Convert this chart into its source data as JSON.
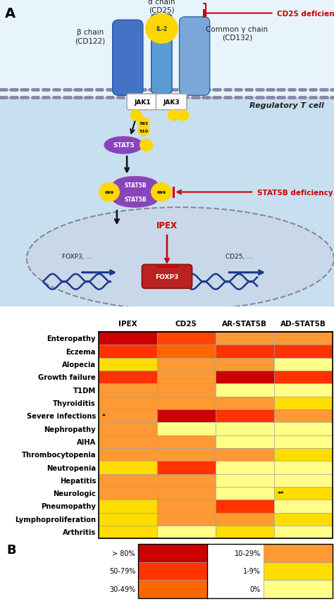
{
  "rows": [
    "Enteropathy",
    "Eczema",
    "Alopecia",
    "Growth failure",
    "T1DM",
    "Thyroiditis",
    "Severe infections",
    "Nephropathy",
    "AIHA",
    "Thrombocytopenia",
    "Neutropenia",
    "Hepatitis",
    "Neurologic",
    "Pneumopathy",
    "Lymphoproliferation",
    "Arthritis"
  ],
  "cols": [
    "IPEX",
    "CD25",
    "AR-STAT5B",
    "AD-STAT5B"
  ],
  "heatmap_colors": [
    [
      "#CC0000",
      "#FF4400",
      "#FF9933",
      "#FF9933"
    ],
    [
      "#FF3300",
      "#FF6600",
      "#FF3300",
      "#FF3300"
    ],
    [
      "#FFDD00",
      "#FF9933",
      "#FF9933",
      "#FFFF88"
    ],
    [
      "#FF3300",
      "#FF9933",
      "#CC0000",
      "#FF3300"
    ],
    [
      "#FF9933",
      "#FF9933",
      "#FFFF88",
      "#FFFF88"
    ],
    [
      "#FF9933",
      "#FF9933",
      "#FF9933",
      "#FFDD00"
    ],
    [
      "#FF9933",
      "#CC0000",
      "#FF3300",
      "#FF9933"
    ],
    [
      "#FF9933",
      "#FFFF88",
      "#FFFF88",
      "#FFFF88"
    ],
    [
      "#FF9933",
      "#FF9933",
      "#FFFF88",
      "#FFFF88"
    ],
    [
      "#FF9933",
      "#FF9933",
      "#FF9933",
      "#FFDD00"
    ],
    [
      "#FFDD00",
      "#FF3300",
      "#FFFF88",
      "#FFFF88"
    ],
    [
      "#FF9933",
      "#FF9933",
      "#FFFF88",
      "#FFFF88"
    ],
    [
      "#FF9933",
      "#FF9933",
      "#FFFF88",
      "#FFDD00"
    ],
    [
      "#FFDD00",
      "#FF9933",
      "#FF3300",
      "#FFFF88"
    ],
    [
      "#FFDD00",
      "#FF9933",
      "#FF9933",
      "#FFDD00"
    ],
    [
      "#FFDD00",
      "#FFFF88",
      "#FFDD00",
      "#FFFF88"
    ]
  ],
  "annotations": {
    "6_0": "*",
    "12_3": "**"
  },
  "legend_left_labels": [
    "> 80%",
    "50-79%",
    "30-49%"
  ],
  "legend_right_labels": [
    "10-29%",
    "1-9%",
    "0%"
  ],
  "legend_left_colors": [
    "#CC0000",
    "#FF3300",
    "#FF6600"
  ],
  "legend_right_colors": [
    "#FF9933",
    "#FFDD00",
    "#FFFF88"
  ],
  "diagram_bg_outer": "#E8F4FC",
  "diagram_bg_inner": "#C8DFF0",
  "membrane_color": "#8888AA",
  "jak_fill": "#FFFFFF",
  "jak_edge": "#AAAAAA",
  "il2_color": "#FFD700",
  "stat5_color": "#8844BB",
  "chain_alpha_color": "#5B9BD5",
  "chain_beta_color": "#4472C4",
  "chain_gamma_color": "#7BA7D8",
  "nucleus_bg": "#C8D8E8",
  "nucleus_edge": "#888899",
  "foxp3_fill": "#BB2222",
  "dna_color": "#1A3A8C",
  "deficiency_color": "#CC0000",
  "arrow_color": "#111111"
}
